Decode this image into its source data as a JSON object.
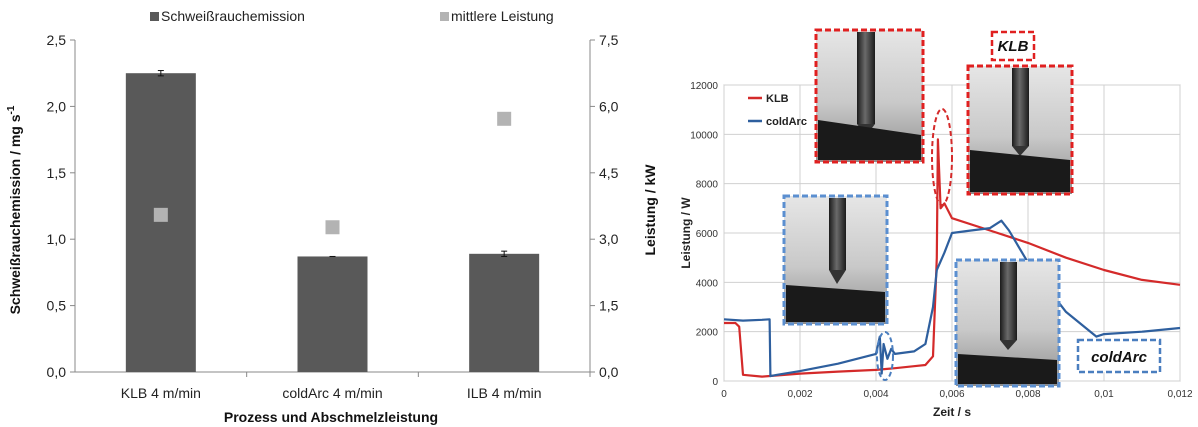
{
  "chart_data": [
    {
      "type": "bar",
      "legend": [
        {
          "label": "Schweißrauchemission",
          "color": "#595959",
          "marker": "square"
        },
        {
          "label": "mittlere Leistung",
          "color": "#b3b3b3",
          "marker": "square"
        }
      ],
      "legend_placement": "top",
      "categories": [
        "KLB  4 m/min",
        "coldArc 4 m/min",
        "ILB  4 m/min"
      ],
      "series": [
        {
          "name": "Schweißrauchemission",
          "axis": "left",
          "kind": "bar",
          "color": "#595959",
          "values": [
            2.25,
            0.87,
            0.89
          ],
          "error": [
            0.02,
            0.0,
            0.02
          ]
        },
        {
          "name": "mittlere Leistung",
          "axis": "right",
          "kind": "marker",
          "color": "#b3b3b3",
          "values": [
            3.55,
            3.27,
            5.72
          ]
        }
      ],
      "xlabel": "Prozess und Abschmelzleistung",
      "ylabel_left": "Schweißrauchemission / mg s",
      "ylabel_left_sup": "-1",
      "ylabel_right": "Leistung / kW",
      "ylim_left": [
        0,
        2.5
      ],
      "ylim_right": [
        0,
        7.5
      ],
      "yticks_left": [
        "0,0",
        "0,5",
        "1,0",
        "1,5",
        "2,0",
        "2,5"
      ],
      "yticks_right": [
        "0,0",
        "1,5",
        "3,0",
        "4,5",
        "6,0",
        "7,5"
      ],
      "grid": false
    },
    {
      "type": "line",
      "xlabel": "Zeit / s",
      "ylabel": "Leistung / W",
      "xlim": [
        0,
        0.012
      ],
      "ylim": [
        0,
        12000
      ],
      "xticks": [
        "0",
        "0,002",
        "0,004",
        "0,006",
        "0,008",
        "0,01",
        "0,012"
      ],
      "yticks": [
        "0",
        "2000",
        "4000",
        "6000",
        "8000",
        "10000",
        "12000"
      ],
      "grid": true,
      "legend_placement": "top-left",
      "series": [
        {
          "name": "KLB",
          "color": "#d42a2a",
          "x": [
            0,
            0.0003,
            0.0004,
            0.0005,
            0.001,
            0.002,
            0.003,
            0.004,
            0.0045,
            0.005,
            0.0053,
            0.0055,
            0.0056,
            0.00563,
            0.0057,
            0.0058,
            0.006,
            0.007,
            0.008,
            0.009,
            0.01,
            0.011,
            0.012
          ],
          "y": [
            2350,
            2350,
            2200,
            250,
            180,
            300,
            380,
            450,
            520,
            600,
            650,
            1000,
            5000,
            9800,
            7000,
            7200,
            6600,
            6100,
            5600,
            5000,
            4500,
            4100,
            3900
          ]
        },
        {
          "name": "coldArc",
          "color": "#2e5f9e",
          "x": [
            0,
            0.0005,
            0.001,
            0.0012,
            0.00122,
            0.0014,
            0.002,
            0.003,
            0.0035,
            0.004,
            0.0041,
            0.00415,
            0.0042,
            0.0043,
            0.0044,
            0.0045,
            0.005,
            0.0053,
            0.0055,
            0.0056,
            0.0058,
            0.006,
            0.0065,
            0.007,
            0.0073,
            0.0075,
            0.008,
            0.009,
            0.0098,
            0.01,
            0.011,
            0.012
          ],
          "y": [
            2500,
            2450,
            2480,
            2500,
            200,
            250,
            400,
            700,
            900,
            1100,
            1800,
            300,
            1500,
            900,
            1300,
            1100,
            1200,
            1500,
            3000,
            4500,
            5200,
            6000,
            6100,
            6200,
            6500,
            6100,
            4800,
            2800,
            1800,
            1900,
            2000,
            2150
          ]
        }
      ],
      "callouts": [
        "KLB",
        "coldArc"
      ]
    }
  ]
}
